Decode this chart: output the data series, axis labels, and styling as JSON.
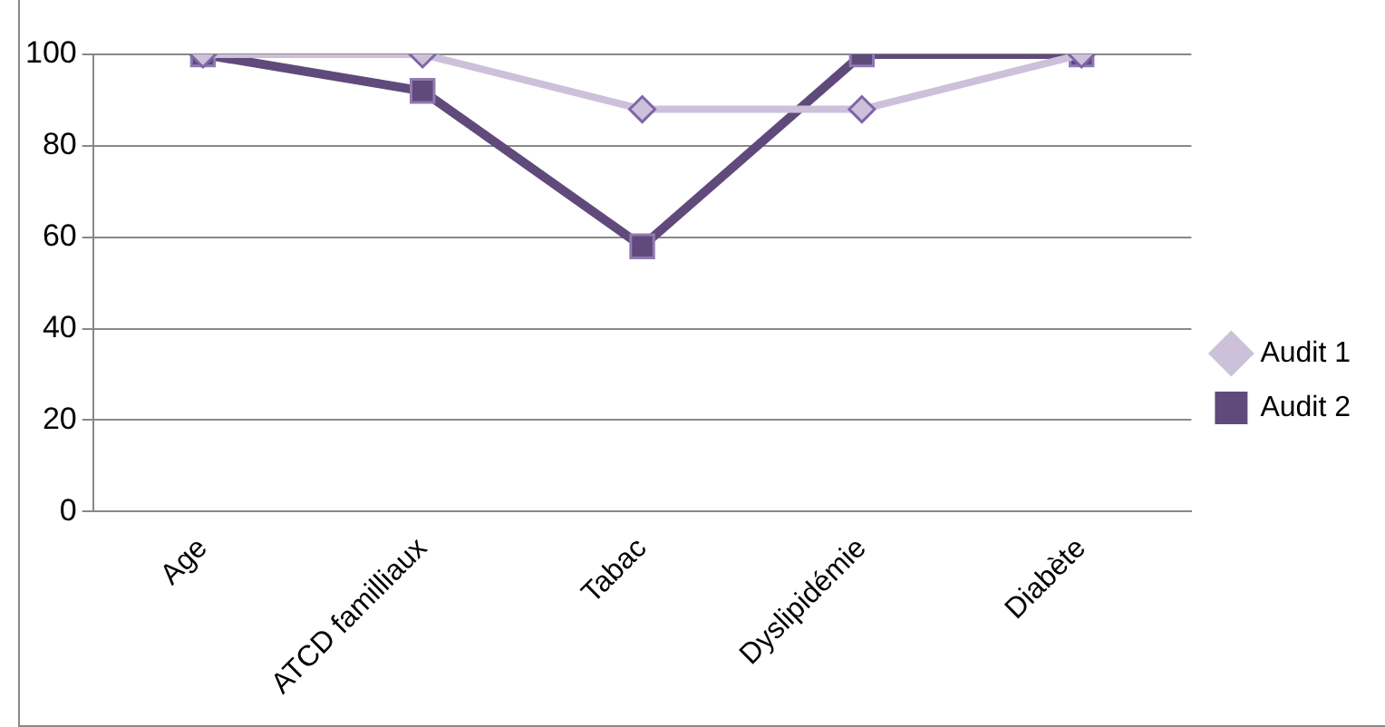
{
  "chart_data": {
    "type": "line",
    "categories": [
      "Age",
      "ATCD familliaux",
      "Tabac",
      "Dyslipidémie",
      "Diabète"
    ],
    "series": [
      {
        "name": "Audit 1",
        "color": "#ccc0da",
        "marker": "diamond",
        "values": [
          100,
          100,
          88,
          88,
          100
        ]
      },
      {
        "name": "Audit 2",
        "color": "#604a7b",
        "marker": "square",
        "values": [
          100,
          92,
          58,
          100,
          100
        ]
      }
    ],
    "ylim": [
      0,
      100
    ],
    "yticks": [
      0,
      20,
      40,
      60,
      80,
      100
    ],
    "grid": "y",
    "legend": "right"
  }
}
